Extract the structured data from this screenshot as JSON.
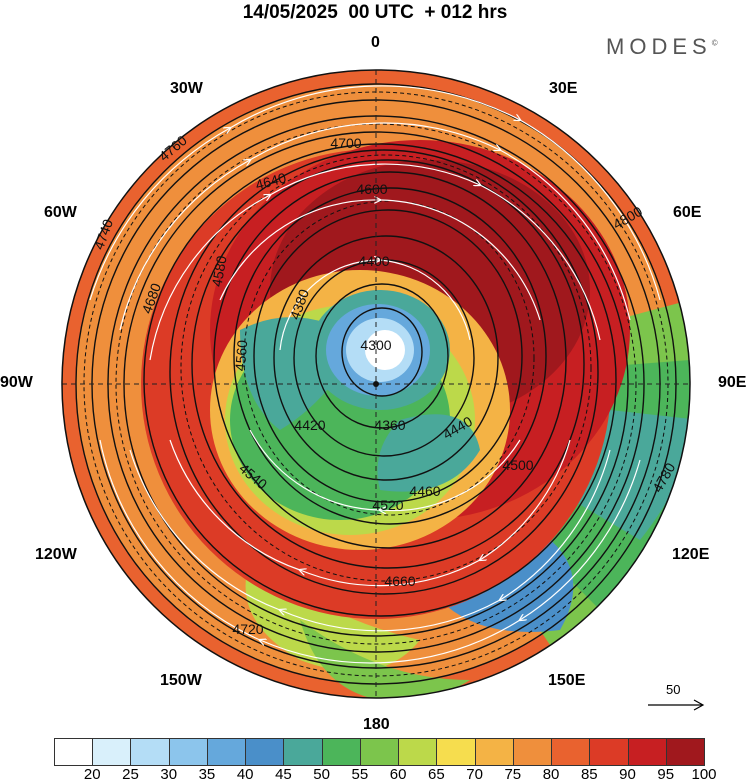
{
  "title": "14/05/2025  00 UTC  + 012 hrs",
  "brand": "MODES",
  "brand_mark": "©",
  "longitude_labels": {
    "n": "0",
    "nne": "30E",
    "ne": "60E",
    "e": "90E",
    "se": "120E",
    "sse": "150E",
    "s": "180",
    "ssw": "150W",
    "sw": "120W",
    "w": "90W",
    "nw": "60W",
    "nnw": "30W"
  },
  "reference_vector": "50",
  "colorbar": {
    "colors": [
      "#ffffff",
      "#d9f0fb",
      "#b4ddf6",
      "#8cc5ec",
      "#65a8dc",
      "#4a8fc9",
      "#4aa89a",
      "#4cb55a",
      "#7cc54c",
      "#bcd94a",
      "#f6dd4e",
      "#f4b345",
      "#ef8f3c",
      "#e9622f",
      "#dc3b26",
      "#c71f22",
      "#a0181d"
    ],
    "ticks": [
      "20",
      "25",
      "30",
      "35",
      "40",
      "45",
      "50",
      "55",
      "60",
      "65",
      "70",
      "75",
      "80",
      "85",
      "90",
      "95",
      "100"
    ]
  },
  "contours": [
    {
      "label": "4300"
    },
    {
      "label": "4360"
    },
    {
      "label": "4380"
    },
    {
      "label": "4400"
    },
    {
      "label": "4420"
    },
    {
      "label": "4440"
    },
    {
      "label": "4460"
    },
    {
      "label": "4500"
    },
    {
      "label": "4520"
    },
    {
      "label": "4540"
    },
    {
      "label": "4560"
    },
    {
      "label": "4580"
    },
    {
      "label": "4600"
    },
    {
      "label": "4640"
    },
    {
      "label": "4660"
    },
    {
      "label": "4680"
    },
    {
      "label": "4700"
    },
    {
      "label": "4720"
    },
    {
      "label": "4740"
    },
    {
      "label": "4760"
    },
    {
      "label": "4780"
    },
    {
      "label": "4800"
    }
  ]
}
